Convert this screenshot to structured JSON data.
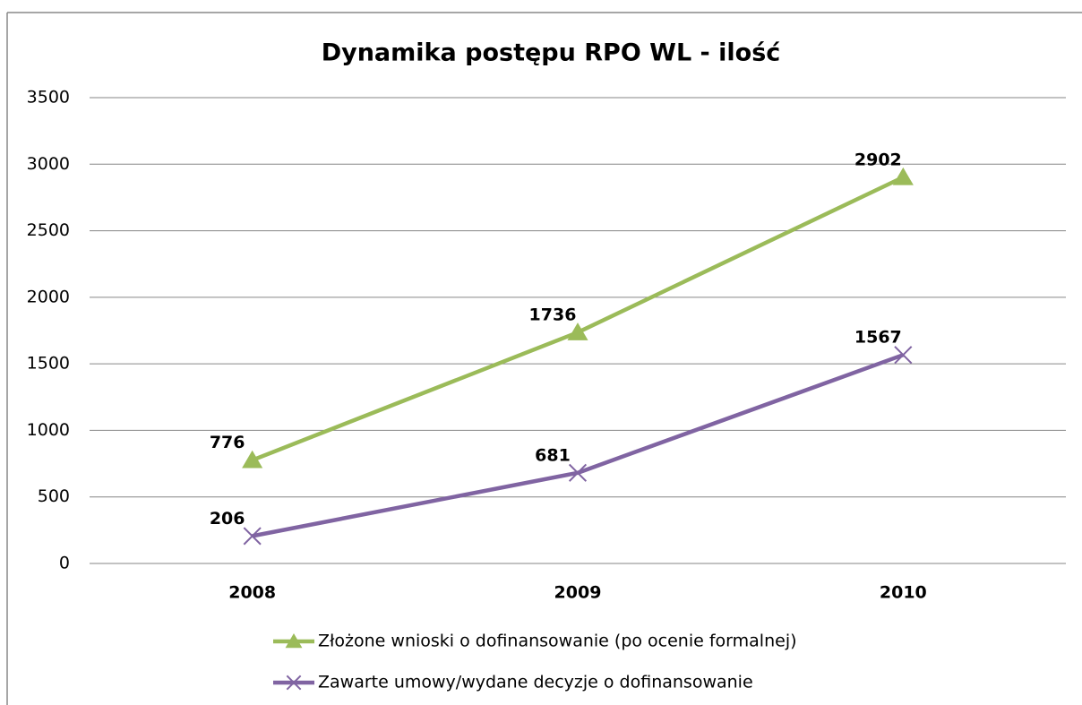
{
  "chart_data": {
    "type": "line",
    "title": "Dynamika postępu RPO WL - ilość",
    "categories": [
      "2008",
      "2009",
      "2010"
    ],
    "series": [
      {
        "name": "Złożone wnioski o dofinansowanie (po ocenie formalnej)",
        "color": "#9bbb59",
        "marker": "triangle",
        "values": [
          776,
          1736,
          2902
        ]
      },
      {
        "name": "Zawarte umowy/wydane decyzje o dofinansowanie",
        "color": "#8064a2",
        "marker": "x",
        "values": [
          206,
          681,
          1567
        ]
      }
    ],
    "ylim": [
      0,
      3500
    ],
    "yticks": [
      0,
      500,
      1000,
      1500,
      2000,
      2500,
      3000,
      3500
    ],
    "grid": true,
    "legend": "bottom"
  }
}
